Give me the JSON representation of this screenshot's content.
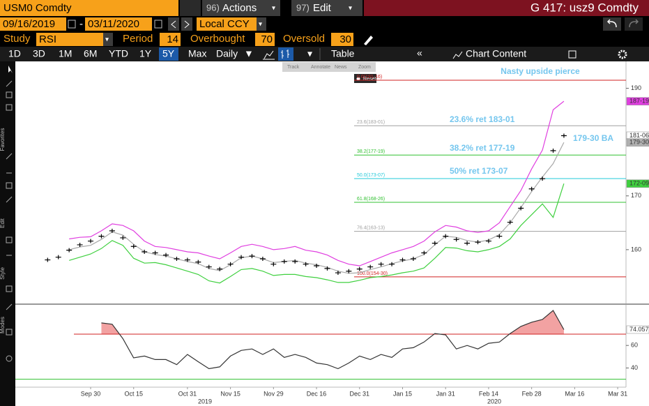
{
  "ui": {
    "security": "USM0 Comdty",
    "actions_num": "96)",
    "actions": "Actions",
    "edit_num": "97)",
    "edit": "Edit",
    "header": "G 417: usz9 Comdty",
    "start_date": "09/16/2019",
    "date_separator": "-",
    "end_date": "03/11/2020",
    "currency": "Local CCY",
    "study_label": "Study",
    "study": "RSI",
    "period_label": "Period",
    "period": 14,
    "overbought_label": "Overbought",
    "overbought": 70,
    "oversold_label": "Oversold",
    "oversold": 30,
    "ranges": [
      "1D",
      "3D",
      "1M",
      "6M",
      "YTD",
      "1Y",
      "5Y",
      "Max"
    ],
    "selected_range": "5Y",
    "frequency": "Daily",
    "table": "Table",
    "chart_content": "Chart Content",
    "side_tabs": [
      "Favorites",
      "Edit",
      "Style",
      "Modes"
    ],
    "mini_toolbar": [
      "Track",
      "Annotate",
      "News",
      "Zoom"
    ],
    "reset": "Reset"
  },
  "chart_data": [
    {
      "type": "line",
      "categories": [
        null,
        null,
        null,
        null,
        "Sep 30",
        null,
        null,
        null,
        "Oct 15",
        null,
        null,
        null,
        null,
        "Oct 31",
        null,
        null,
        null,
        "Nov 15",
        null,
        null,
        null,
        "Nov 29",
        null,
        null,
        null,
        "Dec 16",
        null,
        null,
        null,
        "Dec 31",
        null,
        null,
        null,
        "Jan 15",
        null,
        null,
        null,
        "Jan 31",
        null,
        null,
        null,
        "Feb 14",
        null,
        null,
        null,
        "Feb 28",
        null,
        null,
        null,
        "Mar 16",
        null,
        null,
        null,
        "Mar 31"
      ],
      "year_labels": [
        "2019",
        "2020"
      ],
      "series": [
        {
          "color": "#e03ee0",
          "style": "line",
          "values": [
            null,
            null,
            162.0,
            162.3,
            162.4,
            163.5,
            164.8,
            164.5,
            163.5,
            161.6,
            160.6,
            160.4,
            160.0,
            159.6,
            159.4,
            158.8,
            158.3,
            159.4,
            160.6,
            161.0,
            160.6,
            160.0,
            160.2,
            160.6,
            159.9,
            159.6,
            159.0,
            158.0,
            157.3,
            157.0,
            157.8,
            158.6,
            159.4,
            160.0,
            160.6,
            161.6,
            163.3,
            164.5,
            164.2,
            163.5,
            163.2,
            163.5,
            165.0,
            168.0,
            171.0,
            175.0,
            178.5,
            186.0,
            187.59,
            null,
            null,
            null,
            null,
            null
          ]
        },
        {
          "color": "#a8a8a8",
          "style": "line",
          "values": [
            null,
            null,
            160.0,
            160.5,
            160.8,
            161.9,
            163.3,
            162.7,
            161.0,
            159.6,
            159.1,
            158.8,
            158.3,
            157.8,
            157.4,
            156.5,
            156.1,
            157.2,
            158.5,
            158.8,
            158.3,
            157.6,
            157.8,
            158.0,
            157.5,
            157.2,
            156.7,
            156.0,
            155.6,
            155.7,
            156.3,
            156.8,
            157.4,
            157.9,
            158.3,
            159.1,
            160.9,
            162.5,
            162.3,
            161.7,
            161.4,
            161.8,
            162.8,
            165.0,
            167.8,
            170.8,
            173.5,
            176.0,
            179.94,
            null,
            null,
            null,
            null,
            null
          ]
        },
        {
          "color": "#3fd03f",
          "style": "line",
          "values": [
            null,
            null,
            158.0,
            158.6,
            159.2,
            160.2,
            161.7,
            160.8,
            158.4,
            157.5,
            157.6,
            157.2,
            156.6,
            156.0,
            155.4,
            154.2,
            153.8,
            155.0,
            156.3,
            156.5,
            156.0,
            155.2,
            155.4,
            155.4,
            155.0,
            154.8,
            154.4,
            153.9,
            153.9,
            154.3,
            154.8,
            155.0,
            155.3,
            155.7,
            156.0,
            156.6,
            158.4,
            160.4,
            160.3,
            159.8,
            159.6,
            160.0,
            160.6,
            162.0,
            164.5,
            166.5,
            168.5,
            166.0,
            172.28,
            null,
            null,
            null,
            null,
            null
          ]
        },
        {
          "color": "#000000",
          "style": "dash",
          "values": [
            158.1,
            158.6,
            159.9,
            160.9,
            161.6,
            162.5,
            163.5,
            162.2,
            160.6,
            159.6,
            159.4,
            159.0,
            158.3,
            158.1,
            157.7,
            156.8,
            156.4,
            157.3,
            158.6,
            158.8,
            158.3,
            157.3,
            157.8,
            157.8,
            157.3,
            157.0,
            156.5,
            155.7,
            156.0,
            156.4,
            156.8,
            157.3,
            157.3,
            158.1,
            158.3,
            159.4,
            161.2,
            162.5,
            161.9,
            161.2,
            161.4,
            161.6,
            162.5,
            165.1,
            167.7,
            171.3,
            173.2,
            178.4,
            181.19,
            null,
            null,
            null,
            null,
            null
          ]
        }
      ],
      "ylim": [
        150,
        195
      ],
      "yticks": [
        160,
        170,
        190
      ],
      "fib_levels": [
        {
          "value": 191.5,
          "label": "0.0(191-16)",
          "color": "#d02020"
        },
        {
          "value": 183.03,
          "label": "23.6(183-01)",
          "color": "#a0a0a0"
        },
        {
          "value": 177.59,
          "label": "38.2(177-19)",
          "color": "#30c030"
        },
        {
          "value": 173.22,
          "label": "50.0(173-07)",
          "color": "#20c8d8"
        },
        {
          "value": 168.81,
          "label": "61.8(168-26)",
          "color": "#30c030"
        },
        {
          "value": 163.41,
          "label": "76.4(163-13)",
          "color": "#a0a0a0"
        },
        {
          "value": 154.94,
          "label": "100.0(154-30)",
          "color": "#d02020"
        }
      ],
      "price_labels": [
        {
          "value": 187.59,
          "label": "187-19",
          "color": "#e03ee0"
        },
        {
          "value": 181.19,
          "label": "181-06",
          "color": "#ffffff"
        },
        {
          "value": 179.94,
          "label": "179-30",
          "color": "#b0b0b0"
        },
        {
          "value": 172.28,
          "label": "172-09",
          "color": "#3fd03f"
        }
      ],
      "annotations": [
        "Nasty upside pierce",
        "23.6% ret 183-01",
        "38.2% ret 177-19",
        "50% ret 173-07",
        "179-30 BA"
      ]
    },
    {
      "type": "line",
      "series": [
        {
          "color": "#333333",
          "values": [
            null,
            null,
            null,
            null,
            null,
            80,
            78.8,
            66,
            49,
            50.6,
            47.5,
            47.5,
            43,
            52,
            45.6,
            39.4,
            41,
            50.6,
            55.6,
            56.9,
            52,
            56.9,
            49.4,
            52,
            49.4,
            44.4,
            43,
            39.4,
            44.4,
            50.6,
            47.5,
            52,
            49.4,
            56.9,
            58,
            63,
            70.6,
            69.4,
            56.9,
            60,
            56.9,
            61.9,
            63,
            70.6,
            76.9,
            80.6,
            83,
            91,
            74.057,
            null,
            null,
            null,
            null,
            null
          ]
        }
      ],
      "fill_color": "#f2a2a2",
      "ylim": [
        23,
        96
      ],
      "yticks": [
        40,
        60
      ]
    }
  ]
}
